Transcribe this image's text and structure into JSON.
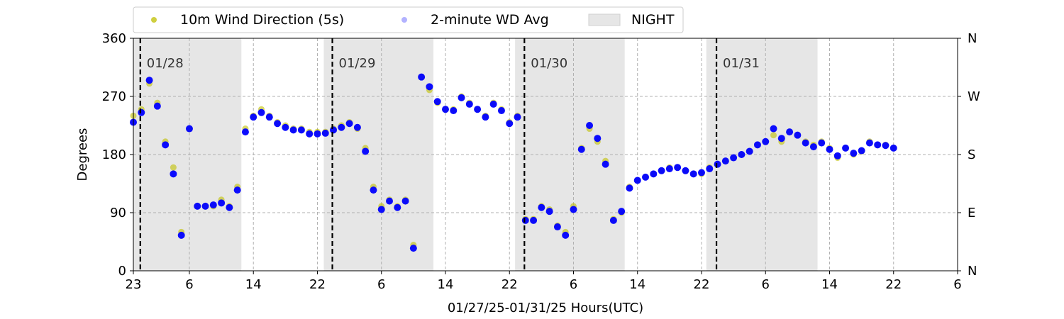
{
  "chart_data": {
    "type": "scatter",
    "xlabel": "01/27/25-01/31/25  Hours(UTC)",
    "ylabel": "Degrees",
    "x_range_hours": [
      0,
      103
    ],
    "x_tick_labels": [
      "23",
      "6",
      "14",
      "22",
      "6",
      "14",
      "22",
      "6",
      "14",
      "22",
      "6",
      "14",
      "22",
      "6"
    ],
    "x_tick_hours": [
      0,
      7,
      15,
      23,
      31,
      39,
      47,
      55,
      63,
      71,
      79,
      87,
      95,
      103
    ],
    "ylim": [
      0,
      360
    ],
    "y_ticks": [
      0,
      90,
      180,
      270,
      360
    ],
    "y_right_labels": [
      "N",
      "E",
      "S",
      "W",
      "N"
    ],
    "grid": true,
    "legend_position": "top",
    "legend": [
      {
        "label": "10m Wind Direction (5s)",
        "color": "#bfbf00"
      },
      {
        "label": "2-minute WD Avg",
        "color": "#0000ff"
      },
      {
        "label": "NIGHT",
        "color": "#e6e6e6"
      }
    ],
    "day_labels": [
      {
        "label": "01/28",
        "hour": 1
      },
      {
        "label": "01/29",
        "hour": 25
      },
      {
        "label": "01/30",
        "hour": 49
      },
      {
        "label": "01/31",
        "hour": 73
      }
    ],
    "night_periods": [
      [
        0,
        13.5
      ],
      [
        23.8,
        37.5
      ],
      [
        47.7,
        61.4
      ],
      [
        71.6,
        85.5
      ]
    ],
    "series": [
      {
        "name": "10m Wind Direction (5s)",
        "color": "#bfbf00",
        "x": [
          0,
          1,
          2,
          3,
          4,
          5,
          6,
          7,
          8,
          9,
          10,
          11,
          12,
          13,
          14,
          15,
          16,
          17,
          18,
          19,
          20,
          21,
          22,
          23,
          24,
          25,
          26,
          27,
          28,
          29,
          30,
          31,
          32,
          33,
          34,
          35,
          36,
          37,
          38,
          39,
          40,
          41,
          42,
          43,
          44,
          45,
          46,
          47,
          48,
          49,
          50,
          51,
          52,
          53,
          54,
          55,
          56,
          57,
          58,
          59,
          60,
          61,
          62,
          63,
          64,
          65,
          66,
          67,
          68,
          69,
          70,
          71,
          72,
          73,
          74,
          75,
          76,
          77,
          78,
          79,
          80,
          81,
          82,
          83,
          84,
          85,
          86,
          87,
          88,
          89,
          90,
          91,
          92,
          93,
          94,
          95
        ],
        "y": [
          240,
          250,
          290,
          260,
          200,
          160,
          60,
          220,
          100,
          100,
          100,
          110,
          100,
          130,
          220,
          240,
          250,
          240,
          230,
          225,
          220,
          220,
          215,
          215,
          215,
          220,
          225,
          230,
          220,
          190,
          130,
          100,
          110,
          100,
          110,
          40,
          300,
          280,
          260,
          250,
          250,
          270,
          260,
          250,
          240,
          260,
          250,
          230,
          240,
          80,
          80,
          100,
          95,
          70,
          60,
          100,
          190,
          220,
          200,
          170,
          80,
          90,
          130,
          140,
          145,
          150,
          155,
          160,
          160,
          155,
          150,
          150,
          160,
          165,
          170,
          175,
          180,
          185,
          195,
          200,
          210,
          200,
          215,
          210,
          200,
          195,
          200,
          190,
          175,
          190,
          180,
          185,
          200,
          195,
          195,
          190
        ]
      },
      {
        "name": "2-minute WD Avg",
        "color": "#0000ff",
        "x": [
          0,
          1,
          2,
          3,
          4,
          5,
          6,
          7,
          8,
          9,
          10,
          11,
          12,
          13,
          14,
          15,
          16,
          17,
          18,
          19,
          20,
          21,
          22,
          23,
          24,
          25,
          26,
          27,
          28,
          29,
          30,
          31,
          32,
          33,
          34,
          35,
          36,
          37,
          38,
          39,
          40,
          41,
          42,
          43,
          44,
          45,
          46,
          47,
          48,
          49,
          50,
          51,
          52,
          53,
          54,
          55,
          56,
          57,
          58,
          59,
          60,
          61,
          62,
          63,
          64,
          65,
          66,
          67,
          68,
          69,
          70,
          71,
          72,
          73,
          74,
          75,
          76,
          77,
          78,
          79,
          80,
          81,
          82,
          83,
          84,
          85,
          86,
          87,
          88,
          89,
          90,
          91,
          92,
          93,
          94,
          95
        ],
        "y": [
          230,
          245,
          295,
          255,
          195,
          150,
          55,
          220,
          100,
          100,
          102,
          105,
          98,
          125,
          215,
          238,
          245,
          238,
          228,
          222,
          218,
          218,
          212,
          212,
          213,
          218,
          222,
          228,
          222,
          185,
          125,
          95,
          108,
          98,
          108,
          35,
          300,
          285,
          262,
          250,
          248,
          268,
          258,
          250,
          238,
          258,
          248,
          228,
          238,
          78,
          78,
          98,
          92,
          68,
          55,
          95,
          188,
          225,
          205,
          165,
          78,
          92,
          128,
          140,
          145,
          150,
          155,
          158,
          160,
          155,
          150,
          152,
          158,
          165,
          170,
          175,
          180,
          185,
          195,
          200,
          220,
          205,
          215,
          210,
          198,
          192,
          198,
          188,
          178,
          190,
          182,
          186,
          198,
          195,
          194,
          190
        ]
      }
    ]
  }
}
